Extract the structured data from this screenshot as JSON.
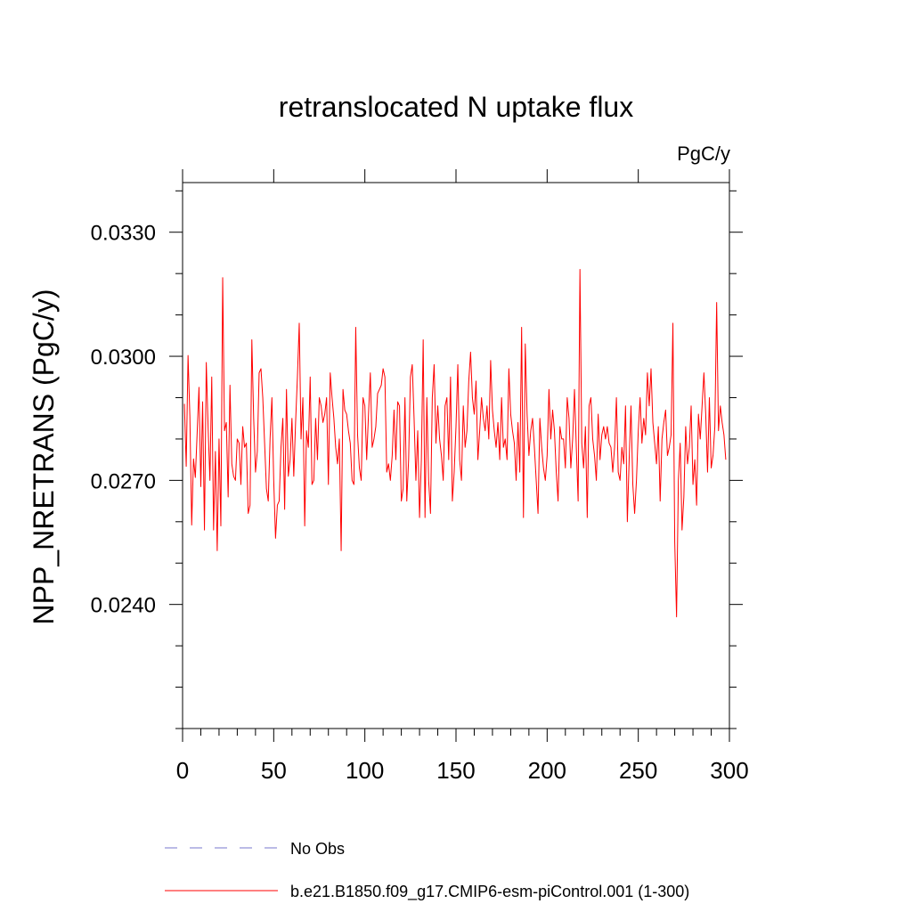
{
  "chart_data": {
    "type": "line",
    "title": "retranslocated N uptake flux",
    "units_label": "PgC/y",
    "ylabel": "NPP_NRETRANS  (PgC/y)",
    "xlabel": "",
    "xlim": [
      0,
      300
    ],
    "ylim": [
      0.021,
      0.0342
    ],
    "x_ticks": [
      0,
      50,
      100,
      150,
      200,
      250,
      300
    ],
    "x_tick_labels": [
      "0",
      "50",
      "100",
      "150",
      "200",
      "250",
      "300"
    ],
    "x_minor_step": 10,
    "y_ticks": [
      0.024,
      0.027,
      0.03,
      0.033
    ],
    "y_tick_labels": [
      "0.0240",
      "0.0270",
      "0.0300",
      "0.0330"
    ],
    "y_minor_step": 0.001,
    "grid": false,
    "legend_position": "bottom-left",
    "series": [
      {
        "name": "No Obs",
        "color": "#7777cc",
        "dash": true,
        "x": [],
        "values": []
      },
      {
        "name": "b.e21.B1850.f09_g17.CMIP6-esm-piControl.001 (1-300)",
        "color": "#ff0000",
        "dash": false,
        "x_start": 1,
        "x_step": 1,
        "values": [
          0.02885,
          0.02734,
          0.03002,
          0.02855,
          0.02592,
          0.02752,
          0.02707,
          0.02815,
          0.02925,
          0.02685,
          0.0289,
          0.0258,
          0.02985,
          0.0283,
          0.027,
          0.0295,
          0.0258,
          0.0277,
          0.0253,
          0.028,
          0.0259,
          0.0319,
          0.0282,
          0.0284,
          0.0266,
          0.0293,
          0.0274,
          0.0271,
          0.027,
          0.028,
          0.0279,
          0.0269,
          0.0283,
          0.0278,
          0.0279,
          0.0262,
          0.0264,
          0.0304,
          0.0285,
          0.0272,
          0.0277,
          0.0296,
          0.0297,
          0.029,
          0.0279,
          0.0268,
          0.0265,
          0.028,
          0.029,
          0.027,
          0.0256,
          0.0264,
          0.0265,
          0.0278,
          0.0285,
          0.0263,
          0.0292,
          0.0271,
          0.0275,
          0.0285,
          0.0271,
          0.0284,
          0.0295,
          0.0308,
          0.028,
          0.029,
          0.0259,
          0.0282,
          0.0278,
          0.0295,
          0.0269,
          0.027,
          0.0285,
          0.0275,
          0.029,
          0.0288,
          0.0284,
          0.0286,
          0.029,
          0.0269,
          0.0296,
          0.029,
          0.0285,
          0.0278,
          0.0274,
          0.028,
          0.0253,
          0.0292,
          0.0287,
          0.0286,
          0.0282,
          0.0279,
          0.027,
          0.0269,
          0.0307,
          0.0281,
          0.0273,
          0.027,
          0.029,
          0.0288,
          0.0275,
          0.0286,
          0.0296,
          0.0278,
          0.028,
          0.0283,
          0.0291,
          0.0292,
          0.0293,
          0.0297,
          0.0295,
          0.0272,
          0.0274,
          0.027,
          0.0276,
          0.0287,
          0.0275,
          0.0289,
          0.0288,
          0.0265,
          0.0268,
          0.029,
          0.0265,
          0.0275,
          0.0295,
          0.0298,
          0.0285,
          0.027,
          0.0282,
          0.0261,
          0.0275,
          0.0304,
          0.0261,
          0.029,
          0.027,
          0.0262,
          0.029,
          0.0298,
          0.0279,
          0.0288,
          0.028,
          0.0276,
          0.027,
          0.0288,
          0.029,
          0.0275,
          0.0295,
          0.0265,
          0.0272,
          0.0283,
          0.0298,
          0.0275,
          0.027,
          0.0288,
          0.0278,
          0.0282,
          0.0294,
          0.0301,
          0.029,
          0.0286,
          0.0294,
          0.0275,
          0.0282,
          0.029,
          0.0285,
          0.0282,
          0.0288,
          0.028,
          0.0299,
          0.0287,
          0.0282,
          0.0278,
          0.0284,
          0.0275,
          0.029,
          0.0278,
          0.028,
          0.0275,
          0.0297,
          0.0286,
          0.0282,
          0.0279,
          0.027,
          0.0284,
          0.0272,
          0.0307,
          0.0261,
          0.0303,
          0.0286,
          0.0276,
          0.0282,
          0.0285,
          0.0278,
          0.027,
          0.0262,
          0.0285,
          0.0278,
          0.0273,
          0.027,
          0.0276,
          0.0292,
          0.028,
          0.0287,
          0.0282,
          0.0272,
          0.0265,
          0.0283,
          0.028,
          0.028,
          0.0273,
          0.029,
          0.0285,
          0.0273,
          0.028,
          0.0292,
          0.0278,
          0.0265,
          0.0321,
          0.0279,
          0.0273,
          0.0283,
          0.0261,
          0.0288,
          0.029,
          0.028,
          0.0276,
          0.027,
          0.0286,
          0.0275,
          0.0281,
          0.0283,
          0.028,
          0.0283,
          0.0279,
          0.0278,
          0.0272,
          0.0278,
          0.029,
          0.0272,
          0.027,
          0.0278,
          0.0274,
          0.0288,
          0.026,
          0.0275,
          0.0288,
          0.0269,
          0.0262,
          0.027,
          0.0282,
          0.029,
          0.0279,
          0.0285,
          0.0281,
          0.0296,
          0.0288,
          0.0297,
          0.0284,
          0.0279,
          0.0274,
          0.0283,
          0.0265,
          0.028,
          0.0284,
          0.0287,
          0.0276,
          0.0278,
          0.0281,
          0.0308,
          0.0255,
          0.0237,
          0.027,
          0.0279,
          0.0258,
          0.0266,
          0.0283,
          0.0274,
          0.0278,
          0.0288,
          0.0269,
          0.0275,
          0.0264,
          0.0286,
          0.028,
          0.0288,
          0.0296,
          0.0286,
          0.0272,
          0.029,
          0.0273,
          0.0276,
          0.0283,
          0.0313,
          0.0282,
          0.0288,
          0.0284,
          0.0281,
          0.0275
        ]
      }
    ]
  }
}
